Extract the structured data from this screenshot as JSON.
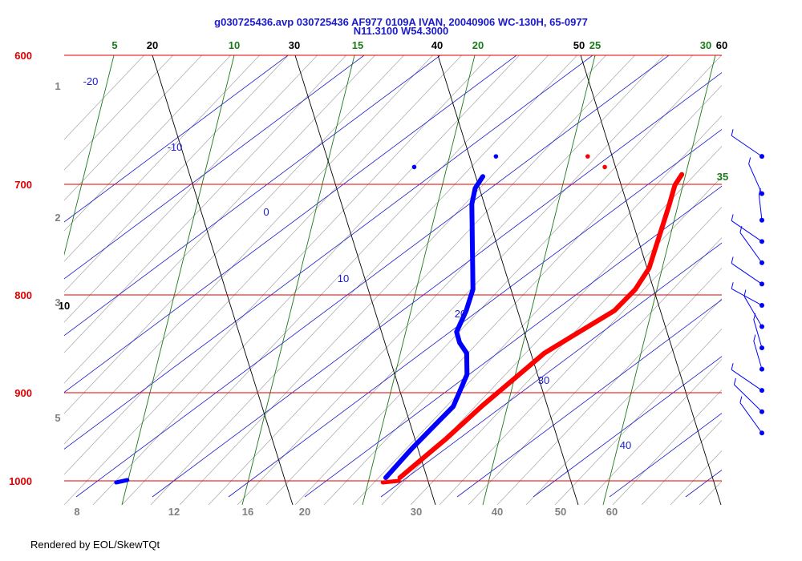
{
  "title_line1": "g030725436.avp 030725436 AF977 0109A IVAN, 20040906 WC-130H, 65-0977",
  "title_line2": "N11.3100 W54.3000",
  "footer": "Rendered by EOL/SkewTQt",
  "colors": {
    "isobar": "#e00000",
    "isotherm": "#000000",
    "mixing_ratio": "#1a7a1a",
    "dry_adiabat": "#999999",
    "isotherm_blue": "#1a1acc",
    "temperature": "#ff0000",
    "dewpoint": "#0000ff",
    "wind": "#0000ff"
  },
  "chart_data": {
    "type": "skew-t",
    "pressure_levels": [
      "600",
      "700",
      "800",
      "900",
      "1000"
    ],
    "temperature_labels": [
      "20",
      "30",
      "40",
      "50",
      "60",
      "10"
    ],
    "mixing_ratio_labels": [
      "5",
      "10",
      "15",
      "20",
      "25",
      "30",
      "35"
    ],
    "isotherm_labels": [
      "-20",
      "-10",
      "0",
      "10",
      "20",
      "30",
      "40"
    ],
    "bottom_labels": [
      "8",
      "12",
      "16",
      "20",
      "30",
      "40",
      "50",
      "60"
    ],
    "left_labels": [
      "1",
      "2",
      "3",
      "5"
    ],
    "temperature_profile": [
      {
        "p": 997,
        "t": 22.5
      },
      {
        "p": 960,
        "t": 24
      },
      {
        "p": 930,
        "t": 25
      },
      {
        "p": 880,
        "t": 27
      },
      {
        "p": 860,
        "t": 28.5
      },
      {
        "p": 840,
        "t": 30
      },
      {
        "p": 820,
        "t": 30.5
      },
      {
        "p": 800,
        "t": 30.5
      },
      {
        "p": 780,
        "t": 30
      },
      {
        "p": 760,
        "t": 29.5
      },
      {
        "p": 740,
        "t": 29
      },
      {
        "p": 722,
        "t": 28.5
      },
      {
        "p": 712,
        "t": 28.5
      }
    ],
    "dewpoint_profile": [
      {
        "p": 997,
        "t": 21.5
      },
      {
        "p": 970,
        "t": 22
      },
      {
        "p": 950,
        "t": 22.5
      },
      {
        "p": 930,
        "t": 23
      },
      {
        "p": 900,
        "t": 22.5
      },
      {
        "p": 880,
        "t": 21.5
      },
      {
        "p": 870,
        "t": 20.5
      },
      {
        "p": 860,
        "t": 19.8
      },
      {
        "p": 840,
        "t": 19.5
      },
      {
        "p": 820,
        "t": 19
      },
      {
        "p": 800,
        "t": 18
      },
      {
        "p": 780,
        "t": 17
      },
      {
        "p": 760,
        "t": 16
      },
      {
        "p": 740,
        "t": 15
      },
      {
        "p": 725,
        "t": 14.5
      },
      {
        "p": 714,
        "t": 14.5
      }
    ],
    "surface_temperature_marks": [
      {
        "p": 1000,
        "t": 22
      }
    ],
    "surface_dewpoint_marks": [
      {
        "p": 1000,
        "t": 3
      }
    ],
    "isolated_temperature_points": [
      {
        "p": 695,
        "t": 21
      },
      {
        "p": 705,
        "t": 22.7
      }
    ],
    "isolated_dewpoint_points": [
      {
        "p": 695,
        "t": 14.5
      },
      {
        "p": 705,
        "t": 9.2
      }
    ],
    "wind_barbs": [
      {
        "p": 695
      },
      {
        "p": 730
      },
      {
        "p": 755
      },
      {
        "p": 775
      },
      {
        "p": 795
      },
      {
        "p": 815
      },
      {
        "p": 835
      },
      {
        "p": 855
      },
      {
        "p": 875
      },
      {
        "p": 895
      },
      {
        "p": 915
      },
      {
        "p": 935
      },
      {
        "p": 955
      }
    ]
  }
}
